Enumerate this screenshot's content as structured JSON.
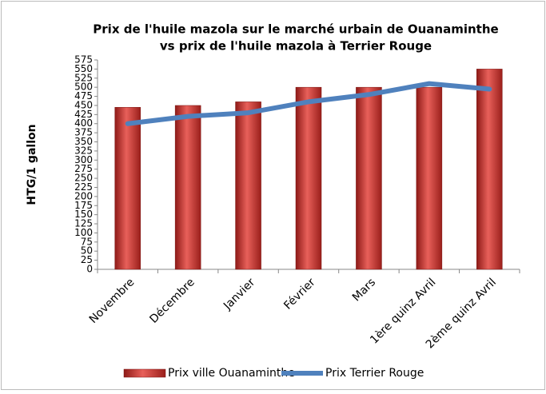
{
  "chart_data": {
    "type": "bar_line",
    "title": [
      "Prix de l'huile  mazola sur le marché urbain de Ouanaminthe",
      "vs  prix de l'huile mazola à Terrier Rouge"
    ],
    "y_label": "HTG/1 gallon",
    "categories": [
      "Novembre",
      "Décembre",
      "Janvier",
      "Février",
      "Mars",
      "1ère quinz Avril",
      "2ème quinz Avril"
    ],
    "series": [
      {
        "name": "Prix ville Ouanaminthe",
        "type": "bar",
        "color": "#c0302c",
        "values": [
          445,
          450,
          460,
          500,
          500,
          500,
          550
        ]
      },
      {
        "name": "Prix Terrier Rouge",
        "type": "line",
        "color": "#4f81bd",
        "values": [
          400,
          420,
          430,
          460,
          480,
          510,
          495
        ]
      }
    ],
    "ylim": [
      0,
      575
    ],
    "yticks": [
      0,
      25,
      50,
      75,
      100,
      125,
      150,
      175,
      200,
      225,
      250,
      275,
      300,
      325,
      350,
      375,
      400,
      425,
      450,
      475,
      500,
      525,
      550,
      575
    ],
    "legend": "bottom"
  }
}
